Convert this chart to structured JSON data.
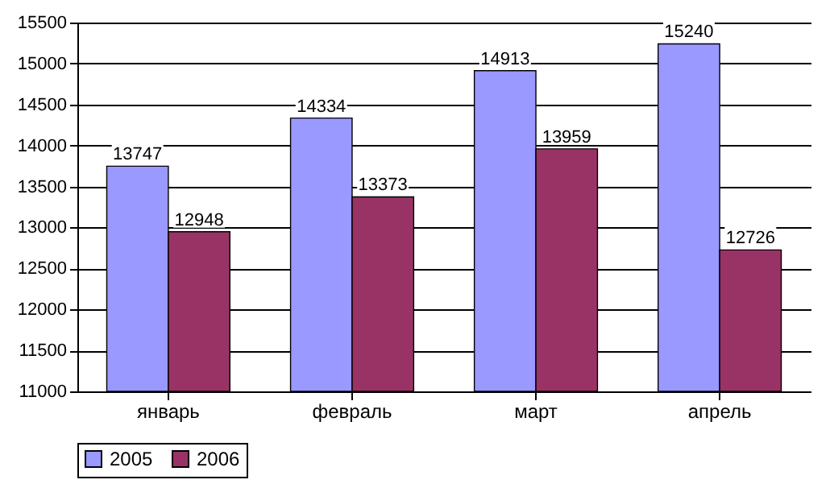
{
  "chart_data": {
    "type": "bar",
    "categories": [
      "январь",
      "февраль",
      "март",
      "апрель"
    ],
    "series": [
      {
        "name": "2005",
        "color": "#9999ff",
        "values": [
          13747,
          14334,
          14913,
          15240
        ]
      },
      {
        "name": "2006",
        "color": "#993366",
        "values": [
          12948,
          13373,
          13959,
          12726
        ]
      }
    ],
    "ylim": [
      11000,
      15500
    ],
    "yticks": [
      11000,
      11500,
      12000,
      12500,
      13000,
      13500,
      14000,
      14500,
      15000,
      15500
    ],
    "grid": "y",
    "legend": "bottom",
    "data_labels": true
  }
}
